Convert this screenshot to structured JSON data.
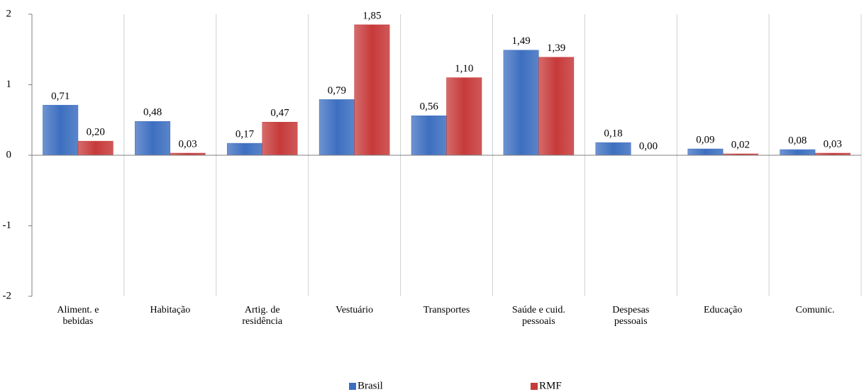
{
  "chart_data": {
    "type": "bar",
    "categories": [
      "Aliment. e\nbebidas",
      "Habitação",
      "Artig. de\nresidência",
      "Vestuário",
      "Transportes",
      "Saúde e cuid.\npessoais",
      "Despesas\npessoais",
      "Educação",
      "Comunic."
    ],
    "series": [
      {
        "name": "Brasil",
        "color": "#3d6fc0",
        "values": [
          0.71,
          0.48,
          0.17,
          0.79,
          0.56,
          1.49,
          0.18,
          0.09,
          0.08
        ],
        "value_labels": [
          "0,71",
          "0,48",
          "0,17",
          "0,79",
          "0,56",
          "1,49",
          "0,18",
          "0,09",
          "0,08"
        ]
      },
      {
        "name": "RMF",
        "color": "#c73a3a",
        "values": [
          0.2,
          0.03,
          0.47,
          1.85,
          1.1,
          1.39,
          0.0,
          0.02,
          0.03
        ],
        "value_labels": [
          "0,20",
          "0,03",
          "0,47",
          "1,85",
          "1,10",
          "1,39",
          "0,00",
          "0,02",
          "0,03"
        ]
      }
    ],
    "ylim": [
      -2,
      2
    ],
    "yticks": [
      -2,
      -1,
      0,
      1,
      2
    ]
  }
}
